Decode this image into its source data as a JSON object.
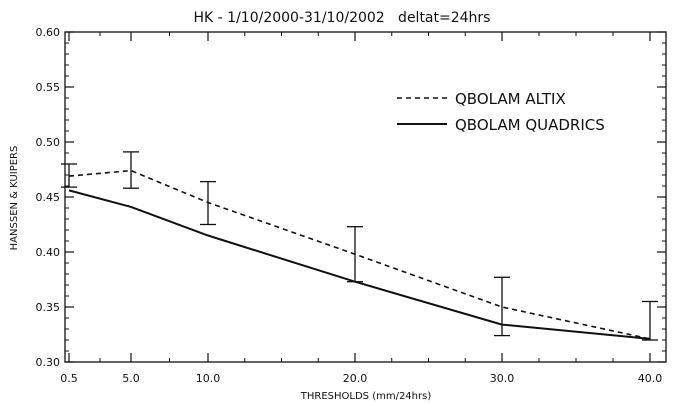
{
  "chart_data": {
    "type": "line",
    "title": "HK - 1/10/2000-31/10/2002   deltat=24hrs",
    "xlabel": "THRESHOLDS (mm/24hrs)",
    "ylabel": "HANSSEN & KUIPERS",
    "x_tick_labels": [
      "0.5",
      "5.0",
      "10.0",
      "20.0",
      "30.0",
      "40.0"
    ],
    "y_tick_labels": [
      "0.30",
      "0.35",
      "0.40",
      "0.45",
      "0.50",
      "0.55",
      "0.60"
    ],
    "ylim": [
      0.3,
      0.6
    ],
    "grid": false,
    "legend_placement": "upper-right",
    "series": [
      {
        "name": "QBOLAM ALTIX",
        "style": "dashed",
        "values": [
          0.469,
          0.474,
          0.445,
          0.398,
          0.35,
          0.321
        ],
        "error_low": [
          0.459,
          0.458,
          0.425,
          0.373,
          0.324,
          0.32
        ],
        "error_high": [
          0.48,
          0.491,
          0.464,
          0.423,
          0.377,
          0.355
        ]
      },
      {
        "name": "QBOLAM QUADRICS",
        "style": "solid",
        "values": [
          0.456,
          0.441,
          0.415,
          0.373,
          0.334,
          0.321
        ]
      }
    ]
  }
}
